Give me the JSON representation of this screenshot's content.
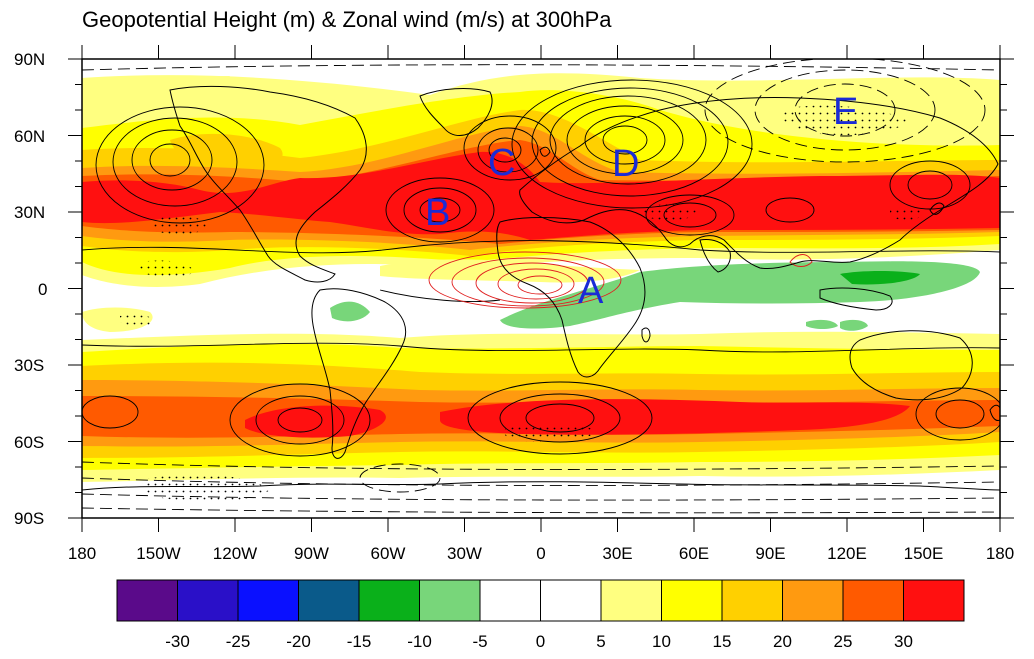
{
  "title": "Geopotential Height (m) & Zonal wind (m/s) at 300hPa",
  "map": {
    "lat_ticks": [
      "90N",
      "60N",
      "30N",
      "0",
      "30S",
      "60S",
      "90S"
    ],
    "lon_ticks": [
      "180",
      "150W",
      "120W",
      "90W",
      "60W",
      "30W",
      "0",
      "30E",
      "60E",
      "90E",
      "120E",
      "150E",
      "180"
    ],
    "region_labels": [
      "A",
      "B",
      "C",
      "D",
      "E"
    ]
  },
  "colorbar": {
    "colors": [
      "#5a0a8a",
      "#2a10c8",
      "#0a10ff",
      "#0a5a8a",
      "#0ab01a",
      "#78d67a",
      "#ffffff",
      "#ffffff",
      "#ffff80",
      "#ffff00",
      "#ffd000",
      "#ff9a10",
      "#ff5a00",
      "#ff1010"
    ],
    "labels": [
      "-30",
      "-25",
      "-20",
      "-15",
      "-10",
      "-5",
      "0",
      "5",
      "10",
      "15",
      "20",
      "25",
      "30"
    ]
  },
  "legend_colors": {
    "c5_10": "#ffff80",
    "c10_15": "#ffff00",
    "c15_20": "#ffd000",
    "c20_25": "#ff9a10",
    "c25_30": "#ff5a00",
    "c30": "#ff1010",
    "cneg5_10": "#78d67a",
    "cneg10_15": "#0ab01a",
    "contour_positive": "#000000",
    "contour_tropical": "#e02020"
  }
}
